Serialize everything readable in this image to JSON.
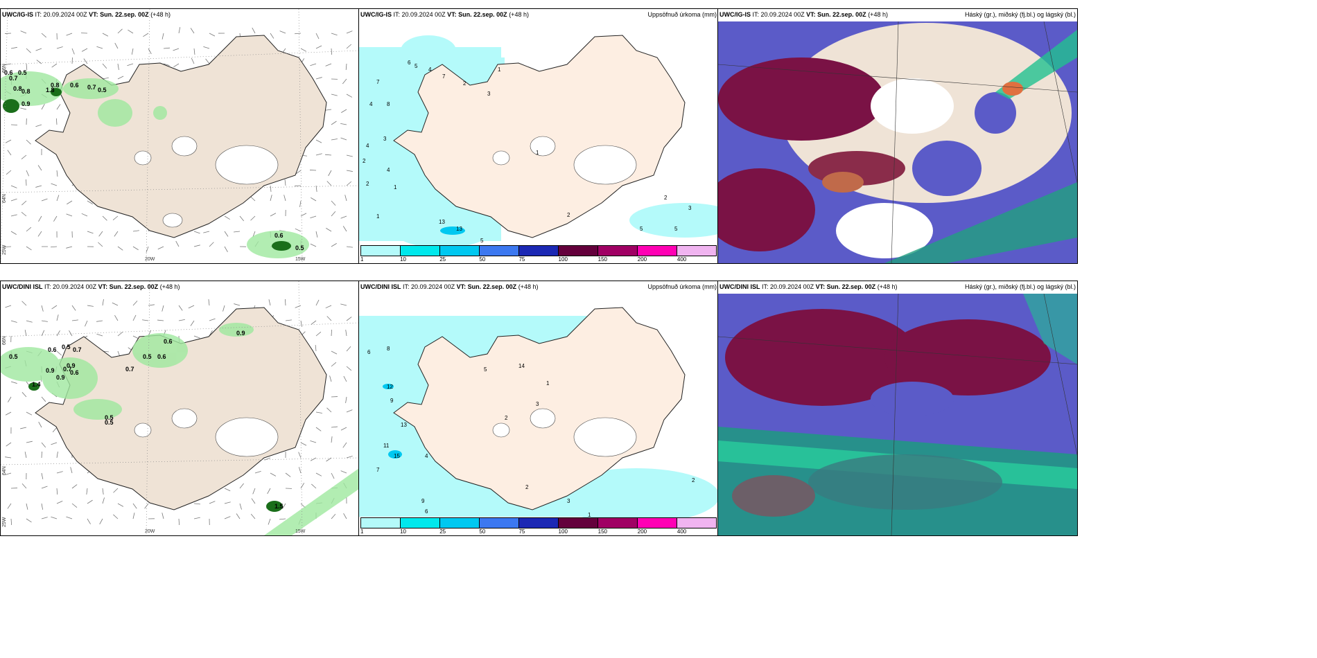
{
  "panels": {
    "p1": {
      "model": "UWC/IG-IS",
      "it": "20.09.2024 00Z",
      "vt_label": "VT:",
      "vt": "Sun. 22.sep. 00Z",
      "lead": "(+48 h)",
      "title": ""
    },
    "p2": {
      "model": "UWC/IG-IS",
      "it": "20.09.2024 00Z",
      "vt_label": "VT:",
      "vt": "Sun. 22.sep. 00Z",
      "lead": "(+48 h)",
      "title": "Uppsöfnuð úrkoma (mm)"
    },
    "p3": {
      "model": "UWC/IG-IS",
      "it": "20.09.2024 00Z",
      "vt_label": "VT:",
      "vt": "Sun. 22.sep. 00Z",
      "lead": "(+48 h)",
      "title": "Háský (gr.), miðský (fj.bl.) og lágský (bl.)"
    },
    "p4": {
      "model": "UWC/DINI ISL",
      "it": "20.09.2024 00Z",
      "vt_label": "VT:",
      "vt": "Sun. 22.sep. 00Z",
      "lead": "(+48 h)",
      "title": ""
    },
    "p5": {
      "model": "UWC/DINI ISL",
      "it": "20.09.2024 00Z",
      "vt_label": "VT:",
      "vt": "Sun. 22.sep. 00Z",
      "lead": "(+48 h)",
      "title": "Uppsöfnuð úrkoma (mm)"
    },
    "p6": {
      "model": "UWC/DINI ISL",
      "it": "20.09.2024 00Z",
      "vt_label": "VT:",
      "vt": "Sun. 22.sep. 00Z",
      "lead": "(+48 h)",
      "title": "Háský (gr.), miðský (fj.bl.) og lágský (bl.)"
    }
  },
  "it_label": "IT:",
  "axis_labels": {
    "lat66": "66N",
    "lat64": "64N",
    "lon25": "25W",
    "lon20": "20W",
    "lon15": "15W"
  },
  "colorbar": {
    "ticks": [
      "1",
      "10",
      "25",
      "50",
      "75",
      "100",
      "150",
      "200",
      "400"
    ],
    "colors": [
      "#b4fafa",
      "#00e8ec",
      "#00c8f0",
      "#3c78f0",
      "#1c28b4",
      "#64003c",
      "#a00064",
      "#ff00b4",
      "#f0b4f0"
    ]
  },
  "precip_labels_top": [
    "7",
    "4",
    "8",
    "6",
    "5",
    "4",
    "7",
    "2",
    "1",
    "3",
    "4",
    "3",
    "2",
    "4",
    "2",
    "1",
    "13",
    "13",
    "5",
    "1",
    "2",
    "1",
    "2",
    "3",
    "5",
    "5"
  ],
  "precip_labels_bottom": [
    "6",
    "8",
    "12",
    "9",
    "11",
    "13",
    "15",
    "7",
    "14",
    "3",
    "5",
    "2",
    "1",
    "4",
    "9",
    "6",
    "2",
    "3",
    "1",
    "2"
  ],
  "wind_labels_top": [
    "0.6",
    "0.5",
    "0.7",
    "0.8",
    "0.8",
    "1.8",
    "0.8",
    "0.6",
    "0.7",
    "0.5",
    "0.9",
    "0.6",
    "0.5"
  ],
  "wind_labels_bottom": [
    "0.5",
    "0.6",
    "0.5",
    "0.7",
    "0.9",
    "0.9",
    "1.4",
    "0.7",
    "0.9",
    "0.6",
    "0.5",
    "0.5",
    "0.7",
    "0.6",
    "0.5",
    "0.6",
    "0.9",
    "1.5"
  ]
}
